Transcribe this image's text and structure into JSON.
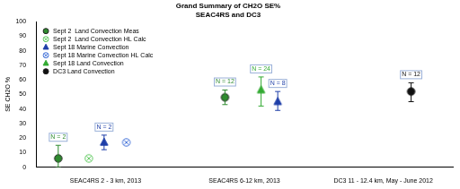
{
  "chart_data": {
    "type": "scatter",
    "title": "Grand Summary of CH2O SE%",
    "subtitle": "SEAC4RS and DC3",
    "y_label": "SE CH2O %",
    "xlim": [
      0,
      3
    ],
    "xticks": [
      {
        "value": 0.5,
        "label": "SEAC4RS 2 - 3 km, 2013"
      },
      {
        "value": 1.5,
        "label": "SEAC4RS 6-12 km, 2013"
      },
      {
        "value": 2.5,
        "label": "DC3 11 - 12.4 km, May - June 2012"
      }
    ],
    "ylim": [
      0,
      100
    ],
    "yticks": [
      0,
      10,
      20,
      30,
      40,
      50,
      60,
      70,
      80,
      90,
      100
    ],
    "grid": false,
    "legend": "upper left",
    "series": [
      {
        "name": "Sept 2  Land Convection Meas",
        "color": "#2e8b2e",
        "marker": "circle",
        "x": [
          0.16,
          1.36
        ],
        "values": [
          6,
          48
        ],
        "error_low": [
          0,
          43
        ],
        "error_high": [
          15,
          53
        ],
        "n_labels": [
          "N = 2",
          "N = 12"
        ]
      },
      {
        "name": "Sept 2  Land Convection HL Calc",
        "color": "#5cc85c",
        "marker": "circle_x",
        "x": [
          0.38
        ],
        "values": [
          6
        ]
      },
      {
        "name": "Sept 18 Marine Convection",
        "color": "#1f3fa8",
        "marker": "triangle",
        "x": [
          0.49,
          1.74
        ],
        "values": [
          17,
          45
        ],
        "error_low": [
          12,
          39
        ],
        "error_high": [
          22,
          52
        ],
        "n_labels": [
          "N = 2",
          "N = 8"
        ]
      },
      {
        "name": "Sept 18 Marine Convection HL Calc",
        "color": "#3f6fd8",
        "marker": "circle_x",
        "x": [
          0.65
        ],
        "values": [
          17
        ]
      },
      {
        "name": "Sept 18 Land Convection",
        "color": "#33aa33",
        "marker": "triangle",
        "x": [
          1.62
        ],
        "values": [
          53
        ],
        "error_low": [
          42
        ],
        "error_high": [
          62
        ],
        "n_labels": [
          "N = 24"
        ]
      },
      {
        "name": "DC3 Land Convection",
        "color": "#111111",
        "marker": "circle",
        "x": [
          2.7
        ],
        "values": [
          52
        ],
        "error_low": [
          45
        ],
        "error_high": [
          58
        ],
        "n_labels": [
          "N = 12"
        ]
      }
    ]
  }
}
